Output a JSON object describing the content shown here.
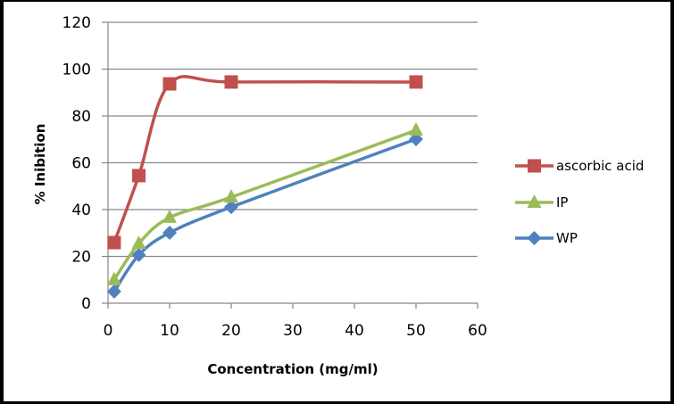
{
  "chart_data": {
    "type": "line",
    "title": "",
    "xlabel": "Concentration (mg/ml)",
    "ylabel": "% Inibition",
    "xlim": [
      0,
      60
    ],
    "ylim": [
      0,
      120
    ],
    "xticks": [
      0,
      10,
      20,
      30,
      40,
      50,
      60
    ],
    "yticks": [
      0,
      20,
      40,
      60,
      80,
      100,
      120
    ],
    "grid": "horizontal",
    "smooth": true,
    "legend_position": "right",
    "series": [
      {
        "name": "ascorbic acid",
        "color": "#C0504D",
        "marker": "square",
        "x": [
          1,
          5,
          10,
          20,
          50
        ],
        "values": [
          25.9,
          54.5,
          93.7,
          94.5,
          94.5
        ]
      },
      {
        "name": "IP",
        "color": "#9BBB59",
        "marker": "triangle",
        "x": [
          1,
          5,
          10,
          20,
          50
        ],
        "values": [
          10,
          25.5,
          36.6,
          45.3,
          73.9
        ]
      },
      {
        "name": "WP",
        "color": "#4F81BD",
        "marker": "diamond",
        "x": [
          1,
          5,
          10,
          20,
          50
        ],
        "values": [
          5,
          20.6,
          30.1,
          41.1,
          70.1
        ]
      }
    ]
  }
}
